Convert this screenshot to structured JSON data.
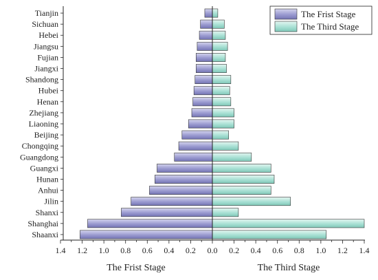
{
  "chart_data": {
    "type": "bar",
    "orientation": "horizontal-butterfly",
    "categories": [
      "Tianjin",
      "Sichuan",
      "Hebei",
      "Jiangsu",
      "Fujian",
      "Jiangxi",
      "Shandong",
      "Hubei",
      "Henan",
      "Zhejiang",
      "Liaoning",
      "Beijing",
      "Chongqing",
      "Guangdong",
      "Guangxi",
      "Hunan",
      "Anhui",
      "Jilin",
      "Shanxi",
      "Shanghai",
      "Shaanxi"
    ],
    "series": [
      {
        "name": "The Frist Stage",
        "side": "left",
        "color": "#8e8ec8",
        "values": [
          0.07,
          0.11,
          0.12,
          0.14,
          0.15,
          0.15,
          0.16,
          0.17,
          0.18,
          0.19,
          0.22,
          0.28,
          0.31,
          0.35,
          0.51,
          0.53,
          0.58,
          0.75,
          0.84,
          1.15,
          1.22
        ]
      },
      {
        "name": "The Third Stage",
        "side": "right",
        "color": "#9ad6c8",
        "values": [
          0.05,
          0.11,
          0.12,
          0.14,
          0.12,
          0.13,
          0.17,
          0.16,
          0.17,
          0.2,
          0.2,
          0.15,
          0.24,
          0.36,
          0.54,
          0.57,
          0.54,
          0.72,
          0.24,
          1.4,
          1.05
        ]
      }
    ],
    "xlim": [
      0,
      1.4
    ],
    "xticks": [
      "1.4",
      "1.2",
      "1.0",
      "0.8",
      "0.6",
      "0.4",
      "0.2",
      "0.0",
      "0.2",
      "0.4",
      "0.6",
      "0.8",
      "1.0",
      "1.2",
      "1.4"
    ],
    "xlabel_left": "The Frist Stage",
    "xlabel_right": "The Third Stage",
    "legend": {
      "position": "top-right",
      "entries": [
        "The Frist Stage",
        "The Third Stage"
      ]
    },
    "grid": false
  }
}
